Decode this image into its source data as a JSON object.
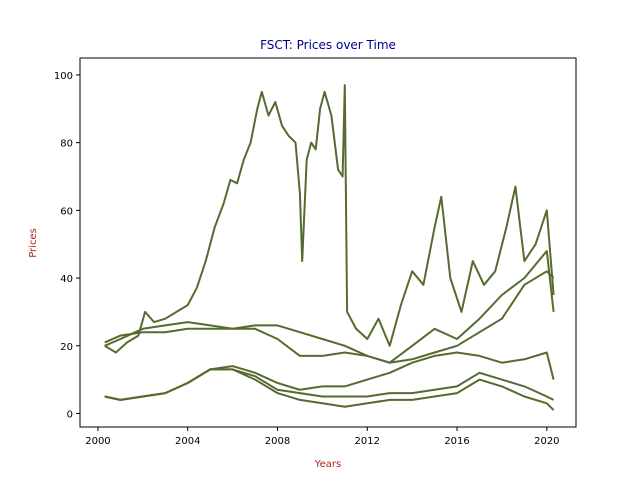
{
  "chart_data": {
    "type": "line",
    "title": "FSCT: Prices over Time",
    "xlabel": "Years",
    "ylabel": "Prices",
    "xlim": [
      1999.2,
      2021.3
    ],
    "ylim": [
      -4,
      105
    ],
    "x_ticks": [
      2000,
      2004,
      2008,
      2012,
      2016,
      2020
    ],
    "y_ticks": [
      0,
      20,
      40,
      60,
      80,
      100
    ],
    "grid": false,
    "legend": "none",
    "colors": {
      "line": "#556B2F",
      "title": "#00008B",
      "axis_label": "#B22222",
      "axes": "#000000"
    },
    "series": [
      {
        "x": [
          2000.3,
          2000.8,
          2001.3,
          2001.8,
          2002.1,
          2002.5,
          2003.0,
          2003.5,
          2004.0,
          2004.4,
          2004.8,
          2005.2,
          2005.6,
          2005.9,
          2006.2,
          2006.5,
          2006.8,
          2007.1,
          2007.3,
          2007.6,
          2007.9,
          2008.2,
          2008.5,
          2008.8,
          2009.0,
          2009.1,
          2009.3,
          2009.5,
          2009.7,
          2009.9,
          2010.1,
          2010.4,
          2010.7,
          2010.9,
          2011.0,
          2011.1,
          2011.5,
          2012.0,
          2012.5,
          2013.0,
          2013.5,
          2014.0,
          2014.5,
          2015.0,
          2015.3,
          2015.7,
          2016.2,
          2016.7,
          2017.2,
          2017.7,
          2018.2,
          2018.6,
          2019.0,
          2019.5,
          2020.0,
          2020.3
        ],
        "y": [
          20,
          18,
          21,
          23,
          30,
          27,
          28,
          30,
          32,
          37,
          45,
          55,
          62,
          69,
          68,
          75,
          80,
          90,
          95,
          88,
          92,
          85,
          82,
          80,
          65,
          45,
          75,
          80,
          78,
          90,
          95,
          88,
          72,
          70,
          97,
          30,
          25,
          22,
          28,
          20,
          32,
          42,
          38,
          55,
          64,
          40,
          30,
          45,
          38,
          42,
          55,
          67,
          45,
          50,
          60,
          35
        ]
      },
      {
        "x": [
          2000.3,
          2001.0,
          2002.0,
          2003.0,
          2004.0,
          2005.0,
          2006.0,
          2007.0,
          2008.0,
          2009.0,
          2010.0,
          2011.0,
          2012.0,
          2013.0,
          2014.0,
          2015.0,
          2016.0,
          2017.0,
          2018.0,
          2019.0,
          2020.0,
          2020.3
        ],
        "y": [
          20,
          22,
          25,
          26,
          27,
          26,
          25,
          26,
          26,
          24,
          22,
          20,
          17,
          15,
          16,
          18,
          20,
          24,
          28,
          38,
          42,
          40
        ]
      },
      {
        "x": [
          2000.3,
          2001.0,
          2002.0,
          2003.0,
          2004.0,
          2005.0,
          2006.0,
          2007.0,
          2008.0,
          2009.0,
          2010.0,
          2011.0,
          2012.0,
          2013.0,
          2014.0,
          2015.0,
          2016.0,
          2017.0,
          2018.0,
          2019.0,
          2020.0,
          2020.3
        ],
        "y": [
          21,
          23,
          24,
          24,
          25,
          25,
          25,
          25,
          22,
          17,
          17,
          18,
          17,
          15,
          20,
          25,
          22,
          28,
          35,
          40,
          48,
          30
        ]
      },
      {
        "x": [
          2000.3,
          2001.0,
          2002.0,
          2003.0,
          2004.0,
          2005.0,
          2006.0,
          2007.0,
          2008.0,
          2009.0,
          2010.0,
          2011.0,
          2012.0,
          2013.0,
          2014.0,
          2015.0,
          2016.0,
          2017.0,
          2018.0,
          2019.0,
          2020.0,
          2020.3
        ],
        "y": [
          5,
          4,
          5,
          6,
          9,
          13,
          14,
          12,
          9,
          7,
          8,
          8,
          10,
          12,
          15,
          17,
          18,
          17,
          15,
          16,
          18,
          10
        ]
      },
      {
        "x": [
          2000.3,
          2001.0,
          2002.0,
          2003.0,
          2004.0,
          2005.0,
          2006.0,
          2007.0,
          2008.0,
          2009.0,
          2010.0,
          2011.0,
          2012.0,
          2013.0,
          2014.0,
          2015.0,
          2016.0,
          2017.0,
          2018.0,
          2019.0,
          2020.0,
          2020.3
        ],
        "y": [
          5,
          4,
          5,
          6,
          9,
          13,
          13,
          11,
          7,
          6,
          5,
          5,
          5,
          6,
          6,
          7,
          8,
          12,
          10,
          8,
          5,
          4
        ]
      },
      {
        "x": [
          2000.3,
          2001.0,
          2002.0,
          2003.0,
          2004.0,
          2005.0,
          2006.0,
          2007.0,
          2008.0,
          2009.0,
          2010.0,
          2011.0,
          2012.0,
          2013.0,
          2014.0,
          2015.0,
          2016.0,
          2017.0,
          2018.0,
          2019.0,
          2020.0,
          2020.3
        ],
        "y": [
          5,
          4,
          5,
          6,
          9,
          13,
          13,
          10,
          6,
          4,
          3,
          2,
          3,
          4,
          4,
          5,
          6,
          10,
          8,
          5,
          3,
          1
        ]
      }
    ]
  }
}
